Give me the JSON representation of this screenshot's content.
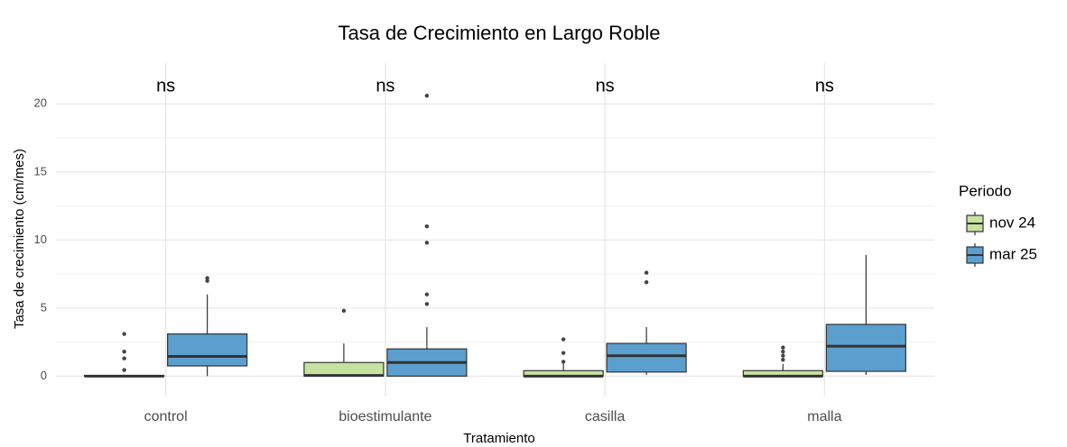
{
  "chart_data": {
    "type": "boxplot",
    "title": "Tasa de Crecimiento en Largo Roble",
    "x_label": "Tratamiento",
    "y_label": "Tasa de crecimiento (cm/mes)",
    "legend_title": "Periodo",
    "legend_position": "right",
    "grid": true,
    "categories": [
      "control",
      "bioestimulante",
      "casilla",
      "malla"
    ],
    "annotations": [
      "ns",
      "ns",
      "ns",
      "ns"
    ],
    "ylim": [
      -1.5,
      23
    ],
    "yticks": [
      0,
      5,
      10,
      15,
      20
    ],
    "series": [
      {
        "name": "nov 24",
        "color": "#c6e2a0",
        "boxes": [
          {
            "min": 0,
            "q1": 0,
            "median": 0,
            "q3": 0.05,
            "max": 0.1,
            "outliers": [
              3.1,
              1.8,
              1.3,
              0.45
            ]
          },
          {
            "min": 0,
            "q1": 0,
            "median": 0.05,
            "q3": 1.0,
            "max": 2.4,
            "outliers": [
              4.8
            ]
          },
          {
            "min": 0,
            "q1": 0,
            "median": 0,
            "q3": 0.4,
            "max": 0.9,
            "outliers": [
              1.05,
              1.7,
              2.7
            ]
          },
          {
            "min": 0,
            "q1": 0,
            "median": 0,
            "q3": 0.4,
            "max": 0.9,
            "outliers": [
              1.2,
              1.5,
              1.8,
              2.1
            ]
          }
        ]
      },
      {
        "name": "mar 25",
        "color": "#5b9fce",
        "boxes": [
          {
            "min": 0,
            "q1": 0.75,
            "median": 1.45,
            "q3": 3.1,
            "max": 6.0,
            "outliers": [
              7.0,
              7.2
            ]
          },
          {
            "min": 0,
            "q1": 0,
            "median": 1.0,
            "q3": 2.0,
            "max": 3.6,
            "outliers": [
              5.3,
              6.0,
              9.8,
              11.0,
              20.6
            ]
          },
          {
            "min": 0.1,
            "q1": 0.3,
            "median": 1.5,
            "q3": 2.4,
            "max": 3.6,
            "outliers": [
              6.9,
              7.6
            ]
          },
          {
            "min": 0.1,
            "q1": 0.35,
            "median": 2.2,
            "q3": 3.8,
            "max": 8.9,
            "outliers": []
          }
        ]
      }
    ]
  }
}
